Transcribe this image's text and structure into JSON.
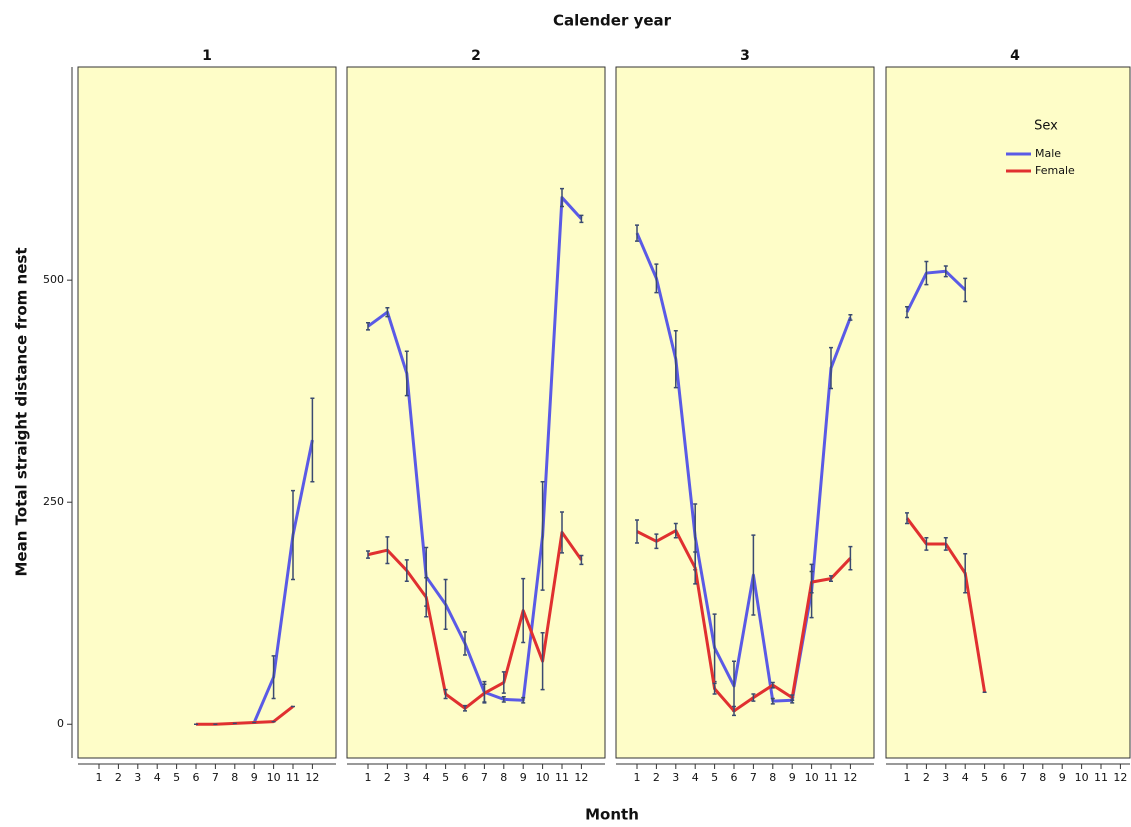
{
  "chart_data": {
    "type": "line",
    "title": "Calender year",
    "xlabel": "Month",
    "ylabel": "Mean Total straight distance from nest",
    "legend_title": "Sex",
    "legend_position": "upper right",
    "ylim": [
      -38,
      740
    ],
    "yticks": [
      0,
      250,
      500
    ],
    "panels": [
      {
        "title": "1",
        "categories": [
          1,
          2,
          3,
          4,
          5,
          6,
          7,
          8,
          9,
          10,
          11,
          12
        ],
        "series": [
          {
            "name": "Male",
            "color": "#5a5ae6",
            "values": [
              null,
              null,
              null,
              null,
              null,
              null,
              null,
              null,
              2,
              53,
              213,
              320
            ],
            "errors": [
              null,
              null,
              null,
              null,
              null,
              null,
              null,
              null,
              0,
              24,
              50,
              47
            ]
          },
          {
            "name": "Female",
            "color": "#e03030",
            "values": [
              null,
              null,
              null,
              null,
              null,
              0,
              0,
              1,
              2,
              3,
              20,
              null
            ],
            "errors": [
              null,
              null,
              null,
              null,
              null,
              0,
              0,
              0,
              0,
              0,
              0,
              null
            ]
          }
        ]
      },
      {
        "title": "2",
        "categories": [
          1,
          2,
          3,
          4,
          5,
          6,
          7,
          8,
          9,
          10,
          11,
          12
        ],
        "series": [
          {
            "name": "Male",
            "color": "#5a5ae6",
            "values": [
              448,
              464,
              395,
              166,
              135,
              91,
              36,
              28,
              27,
              212,
              593,
              569
            ],
            "errors": [
              4,
              5,
              25,
              33,
              28,
              13,
              12,
              3,
              3,
              61,
              10,
              4
            ]
          },
          {
            "name": "Female",
            "color": "#e03030",
            "values": [
              191,
              196,
              173,
              143,
              34,
              18,
              35,
              47,
              128,
              71,
              216,
              185
            ],
            "errors": [
              4,
              15,
              12,
              22,
              5,
              3,
              10,
              12,
              36,
              32,
              23,
              5
            ]
          }
        ]
      },
      {
        "title": "3",
        "categories": [
          1,
          2,
          3,
          4,
          5,
          6,
          7,
          8,
          9,
          10,
          11,
          12
        ],
        "series": [
          {
            "name": "Male",
            "color": "#5a5ae6",
            "values": [
              553,
              502,
              411,
              211,
              86,
              43,
              168,
              26,
              27,
              150,
              401,
              458
            ],
            "errors": [
              9,
              16,
              32,
              37,
              38,
              28,
              45,
              3,
              3,
              30,
              23,
              3
            ]
          },
          {
            "name": "Female",
            "color": "#e03030",
            "values": [
              217,
              206,
              218,
              176,
              40,
              15,
              30,
              44,
              30,
              160,
              164,
              187
            ],
            "errors": [
              13,
              8,
              8,
              18,
              6,
              5,
              4,
              3,
              3,
              12,
              3,
              13
            ]
          }
        ]
      },
      {
        "title": "4",
        "categories": [
          1,
          2,
          3,
          4,
          5,
          6,
          7,
          8,
          9,
          10,
          11,
          12
        ],
        "series": [
          {
            "name": "Male",
            "color": "#5a5ae6",
            "values": [
              464,
              508,
              510,
              489,
              null,
              null,
              null,
              null,
              null,
              null,
              null,
              null
            ],
            "errors": [
              6,
              13,
              6,
              13,
              null,
              null,
              null,
              null,
              null,
              null,
              null,
              null
            ]
          },
          {
            "name": "Female",
            "color": "#e03030",
            "values": [
              232,
              203,
              203,
              170,
              36,
              null,
              null,
              null,
              null,
              null,
              null,
              null
            ],
            "errors": [
              6,
              7,
              7,
              22,
              0,
              null,
              null,
              null,
              null,
              null,
              null,
              null
            ]
          }
        ]
      }
    ]
  }
}
